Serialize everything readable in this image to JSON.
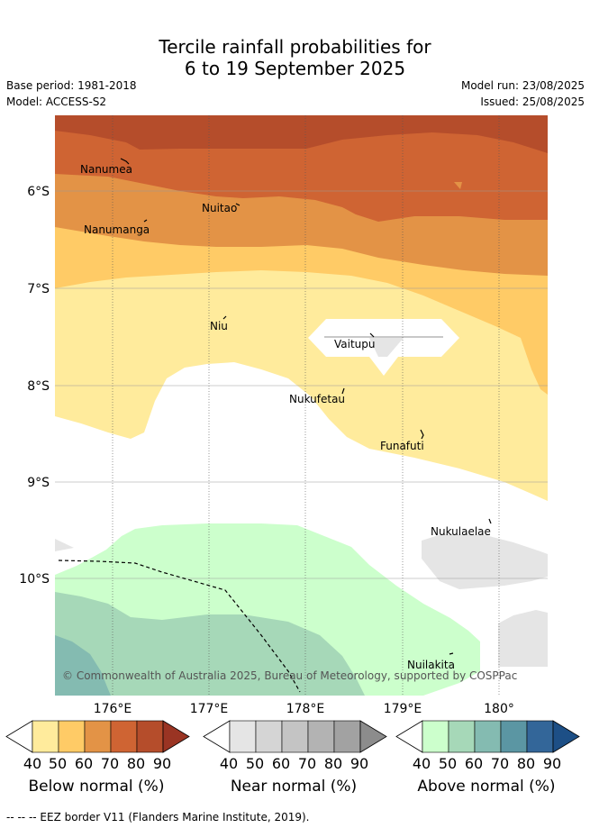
{
  "header": {
    "title_line1": "Tercile rainfall probabilities for",
    "title_line2": "6 to 19 September 2025",
    "base_period": "Base period: 1981-2018",
    "model": "Model: ACCESS-S2",
    "model_run": "Model run: 23/08/2025",
    "issued": "Issued: 25/08/2025"
  },
  "map": {
    "lon_labels": [
      "176°E",
      "177°E",
      "178°E",
      "179°E",
      "180°"
    ],
    "lat_labels": [
      "6°S",
      "7°S",
      "8°S",
      "9°S",
      "10°S"
    ],
    "places": [
      "Nanumea",
      "Nuitao",
      "Nanumanga",
      "Niu",
      "Vaitupu",
      "Nukufetau",
      "Funafuti",
      "Nukulaelae",
      "Nuilakita"
    ],
    "copyright": "© Commonwealth of Australia 2025, Bureau of Meteorology, supported by COSPPac",
    "colors": {
      "below": [
        "#ffeb9c",
        "#ffcb66",
        "#e39346",
        "#cf6433",
        "#b54d2b",
        "#9a3423"
      ],
      "near": [
        "#e5e5e5",
        "#d5d5d5",
        "#c4c4c4",
        "#b3b3b3",
        "#a2a2a2",
        "#8c8c8c"
      ],
      "above": [
        "#ccffcc",
        "#a6d8b8",
        "#84bbb1",
        "#5b96a3",
        "#336699",
        "#1d4f86"
      ]
    }
  },
  "legend": {
    "tick_values": [
      "40",
      "50",
      "60",
      "70",
      "80",
      "90"
    ],
    "below_label": "Below normal (%)",
    "near_label": "Near normal (%)",
    "above_label": "Above normal (%)"
  },
  "footnote": "--  --  -- EEZ border V11 (Flanders Marine Institute, 2019)."
}
